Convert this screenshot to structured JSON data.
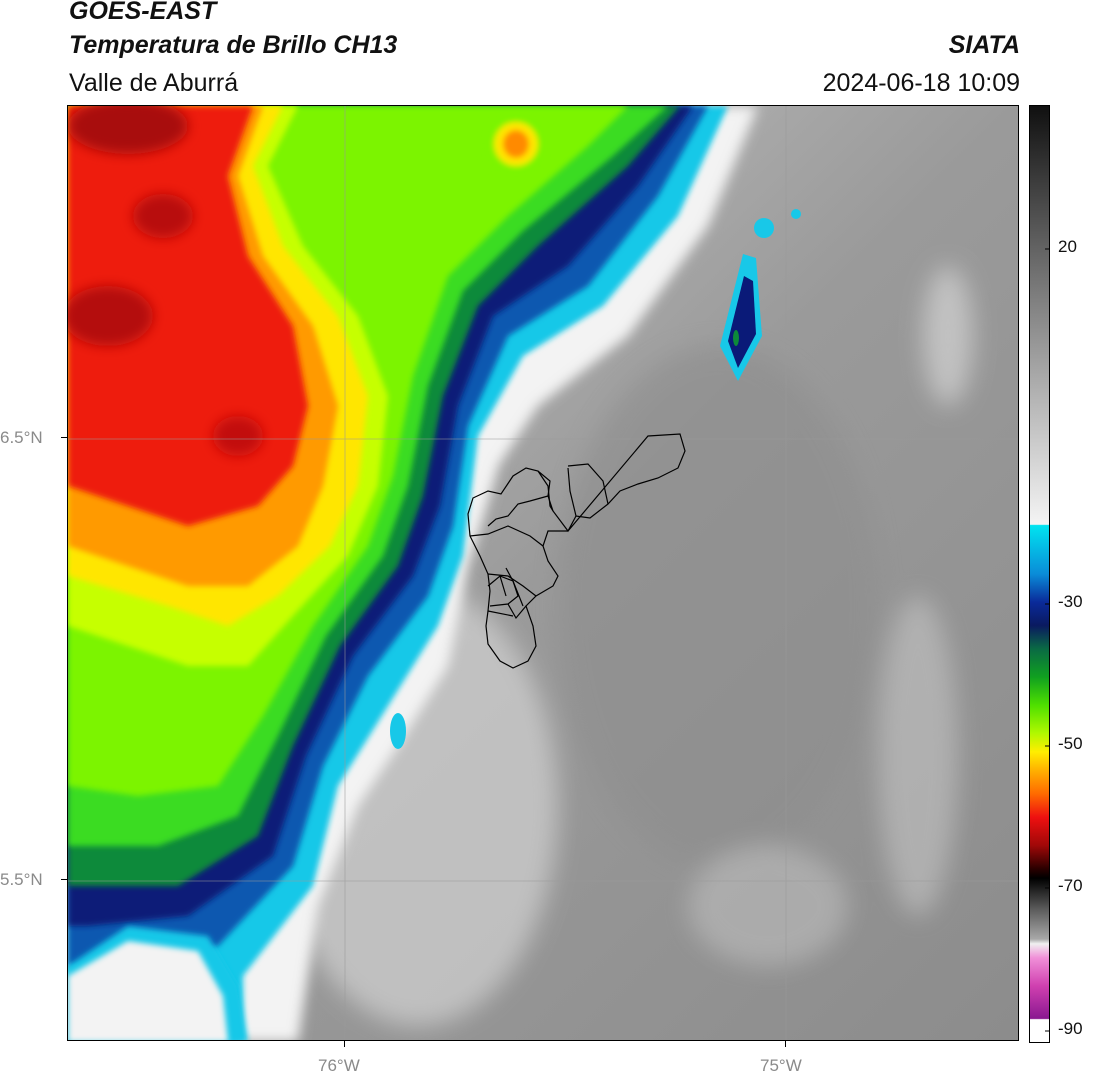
{
  "header": {
    "satellite": "GOES-EAST",
    "product": "Temperatura de Brillo CH13",
    "region": "Valle de Aburrá",
    "agency": "SIATA",
    "datetime": "2024-06-18 10:09"
  },
  "map": {
    "lat_labels": [
      "6.5°N",
      "5.5°N"
    ],
    "lon_labels": [
      "76°W",
      "75°W"
    ]
  },
  "colorbar": {
    "ticks": [
      "20",
      "-30",
      "-50",
      "-70",
      "-90"
    ],
    "tick_values": [
      20,
      -30,
      -50,
      -70,
      -90
    ],
    "range": [
      -92,
      40
    ]
  }
}
